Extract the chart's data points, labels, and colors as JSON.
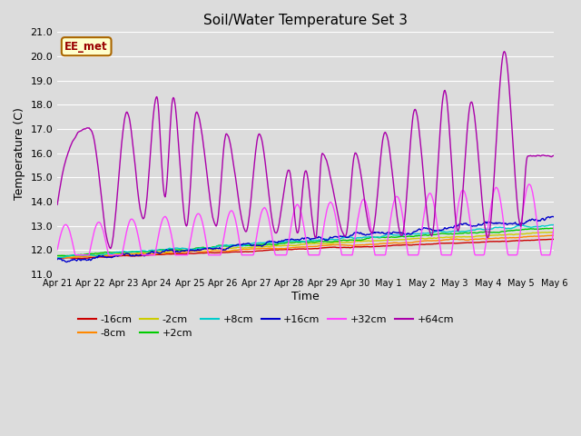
{
  "title": "Soil/Water Temperature Set 3",
  "xlabel": "Time",
  "ylabel": "Temperature (C)",
  "ylim": [
    11.0,
    21.0
  ],
  "yticks": [
    11.0,
    12.0,
    13.0,
    14.0,
    15.0,
    16.0,
    17.0,
    18.0,
    19.0,
    20.0,
    21.0
  ],
  "bg_color": "#dcdcdc",
  "plot_bg_color": "#dcdcdc",
  "grid_color": "#ffffff",
  "annotation_text": "EE_met",
  "annotation_bg": "#ffffcc",
  "annotation_border": "#aa6600",
  "series_colors": {
    "-16cm": "#cc0000",
    "-8cm": "#ff8800",
    "-2cm": "#cccc00",
    "+2cm": "#00cc00",
    "+8cm": "#00cccc",
    "+16cm": "#0000cc",
    "+32cm": "#ff44ff",
    "+64cm": "#aa00aa"
  },
  "x_labels": [
    "Apr 21",
    "Apr 22",
    "Apr 23",
    "Apr 24",
    "Apr 25",
    "Apr 26",
    "Apr 27",
    "Apr 28",
    "Apr 29",
    "Apr 30",
    "May 1",
    "May 2",
    "May 3",
    "May 4",
    "May 5",
    "May 6"
  ],
  "n_points": 720
}
